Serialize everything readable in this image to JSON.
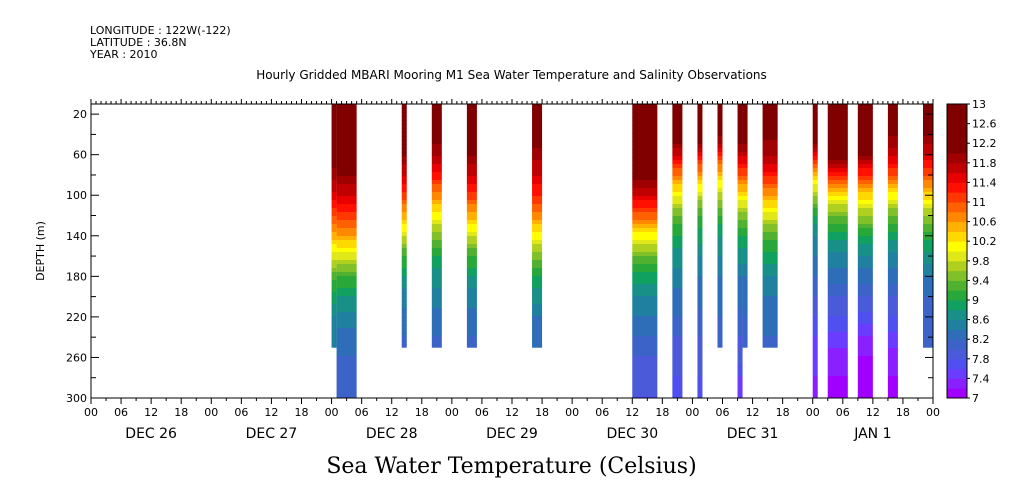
{
  "header": {
    "longitude": "LONGITUDE : 122W(-122)",
    "latitude": "LATITUDE : 36.8N",
    "year": "YEAR : 2010"
  },
  "chart_data": {
    "type": "heatmap",
    "title": "Hourly Gridded MBARI Mooring M1 Sea Water Temperature and Salinity Observations",
    "xlabel": "",
    "ylabel": "DEPTH (m)",
    "colorbar_label": "Sea Water Temperature (Celsius)",
    "x_hours_range": [
      0,
      168
    ],
    "ylim": [
      300,
      0
    ],
    "y_axis_top_visible": 10,
    "y_ticks": [
      20,
      60,
      100,
      140,
      180,
      220,
      260,
      300
    ],
    "x_hour_tick_labels": [
      "00",
      "06",
      "12",
      "18",
      "00",
      "06",
      "12",
      "18",
      "00",
      "06",
      "12",
      "18",
      "00",
      "06",
      "12",
      "18",
      "00",
      "06",
      "12",
      "18",
      "00",
      "06",
      "12",
      "18",
      "00",
      "06",
      "12",
      "18",
      "00"
    ],
    "x_day_labels": [
      {
        "label": "DEC 26",
        "hour": 12
      },
      {
        "label": "DEC 27",
        "hour": 36
      },
      {
        "label": "DEC 28",
        "hour": 60
      },
      {
        "label": "DEC 29",
        "hour": 84
      },
      {
        "label": "DEC 30",
        "hour": 108
      },
      {
        "label": "DEC 31",
        "hour": 132
      },
      {
        "label": "JAN  1",
        "hour": 156
      }
    ],
    "colorbar": {
      "min": 7,
      "max": 13,
      "step": 0.2,
      "tick_labels": [
        "13",
        "12.6",
        "12.2",
        "11.8",
        "11.4",
        "11",
        "10.6",
        "10.2",
        "9.8",
        "9.4",
        "9",
        "8.6",
        "8.2",
        "7.8",
        "7.4",
        "7"
      ],
      "colors": [
        "#a000ff",
        "#8a20ff",
        "#6a3cff",
        "#5050f0",
        "#4a5ad8",
        "#3c64c8",
        "#2e6eb8",
        "#2080a0",
        "#189088",
        "#10a060",
        "#28a838",
        "#50b030",
        "#80c028",
        "#b0d020",
        "#e0e818",
        "#ffff00",
        "#ffd800",
        "#ffb000",
        "#ff8800",
        "#ff6000",
        "#ff3800",
        "#ff1000",
        "#e80000",
        "#c00000",
        "#a00000",
        "#800000"
      ]
    },
    "segments": [
      {
        "start": 48.0,
        "end": 49.0,
        "depth_max": 250,
        "t": [
          12.7,
          12.5,
          12.2,
          11.9,
          11.5,
          11.0,
          10.5,
          9.9,
          9.3,
          8.9,
          8.6,
          8.4
        ]
      },
      {
        "start": 49.0,
        "end": 53.0,
        "depth_max": 300,
        "t": [
          12.8,
          12.6,
          12.3,
          12.0,
          11.6,
          11.1,
          10.6,
          9.9,
          9.2,
          8.8,
          8.5,
          8.3,
          8.2,
          8.1,
          8.0
        ]
      },
      {
        "start": 62.0,
        "end": 63.0,
        "depth_max": 250,
        "t": [
          12.6,
          12.4,
          12.0,
          11.6,
          11.1,
          10.5,
          9.8,
          9.2,
          8.8,
          8.5,
          8.3,
          8.2
        ]
      },
      {
        "start": 68.0,
        "end": 70.0,
        "depth_max": 250,
        "t": [
          12.4,
          12.2,
          11.8,
          11.3,
          10.7,
          10.1,
          9.5,
          9.0,
          8.7,
          8.5,
          8.3,
          8.2
        ]
      },
      {
        "start": 75.0,
        "end": 77.0,
        "depth_max": 250,
        "t": [
          12.5,
          12.3,
          12.0,
          11.6,
          11.1,
          10.5,
          9.8,
          9.2,
          8.8,
          8.5,
          8.3,
          8.2
        ]
      },
      {
        "start": 88.0,
        "end": 90.0,
        "depth_max": 250,
        "t": [
          12.4,
          12.2,
          11.9,
          11.6,
          11.2,
          10.7,
          10.1,
          9.5,
          9.0,
          8.7,
          8.4,
          8.3
        ]
      },
      {
        "start": 108.0,
        "end": 113.0,
        "depth_max": 300,
        "t": [
          12.9,
          12.8,
          12.6,
          12.2,
          11.6,
          10.9,
          10.1,
          9.4,
          8.9,
          8.6,
          8.4,
          8.2,
          8.0,
          7.9,
          7.8
        ]
      },
      {
        "start": 116.0,
        "end": 118.0,
        "depth_max": 300,
        "t": [
          12.6,
          12.3,
          11.6,
          10.8,
          10.0,
          9.4,
          9.0,
          8.7,
          8.5,
          8.3,
          8.2,
          8.0,
          7.9,
          7.8,
          7.7
        ]
      },
      {
        "start": 121.0,
        "end": 122.0,
        "depth_max": 300,
        "t": [
          12.7,
          12.4,
          11.5,
          10.6,
          9.8,
          9.2,
          8.9,
          8.6,
          8.4,
          8.3,
          8.1,
          8.0,
          7.9,
          7.8,
          7.7
        ]
      },
      {
        "start": 125.0,
        "end": 126.0,
        "depth_max": 250,
        "t": [
          12.5,
          12.1,
          11.3,
          10.4,
          9.7,
          9.2,
          8.8,
          8.6,
          8.4,
          8.3,
          8.2,
          8.1
        ]
      },
      {
        "start": 129.0,
        "end": 130.0,
        "depth_max": 300,
        "t": [
          12.5,
          12.2,
          11.7,
          11.0,
          10.2,
          9.5,
          9.0,
          8.7,
          8.4,
          8.3,
          8.1,
          8.0,
          7.9,
          7.6,
          7.4
        ]
      },
      {
        "start": 130.0,
        "end": 131.0,
        "depth_max": 250,
        "t": [
          12.5,
          12.2,
          11.7,
          11.0,
          10.2,
          9.5,
          9.0,
          8.7,
          8.4,
          8.3,
          8.2,
          8.1
        ]
      },
      {
        "start": 134.0,
        "end": 137.0,
        "depth_max": 250,
        "t": [
          12.3,
          12.1,
          11.8,
          11.3,
          10.6,
          9.9,
          9.3,
          8.9,
          8.6,
          8.4,
          8.3,
          8.2
        ]
      },
      {
        "start": 144.0,
        "end": 145.0,
        "depth_max": 300,
        "t": [
          12.9,
          12.6,
          11.5,
          10.4,
          9.6,
          9.0,
          8.6,
          8.4,
          8.2,
          8.0,
          7.8,
          7.6,
          7.5,
          7.4,
          7.3
        ]
      },
      {
        "start": 147.0,
        "end": 151.0,
        "depth_max": 300,
        "t": [
          12.9,
          12.7,
          12.2,
          11.3,
          10.2,
          9.4,
          8.9,
          8.5,
          8.3,
          8.0,
          7.8,
          7.5,
          7.3,
          7.2,
          7.1
        ]
      },
      {
        "start": 153.0,
        "end": 156.0,
        "depth_max": 300,
        "t": [
          12.8,
          12.5,
          12.0,
          11.2,
          10.3,
          9.6,
          9.0,
          8.6,
          8.3,
          8.0,
          7.7,
          7.4,
          7.2,
          7.1,
          7.0
        ]
      },
      {
        "start": 159.0,
        "end": 161.0,
        "depth_max": 300,
        "t": [
          12.2,
          12.0,
          11.7,
          11.0,
          10.1,
          9.4,
          8.9,
          8.5,
          8.3,
          8.0,
          7.8,
          7.5,
          7.3,
          7.2,
          7.1
        ]
      },
      {
        "start": 166.0,
        "end": 168.0,
        "depth_max": 250,
        "t": [
          12.3,
          12.0,
          11.6,
          11.0,
          10.3,
          9.6,
          9.1,
          8.7,
          8.4,
          8.2,
          8.1,
          8.0
        ]
      }
    ]
  }
}
